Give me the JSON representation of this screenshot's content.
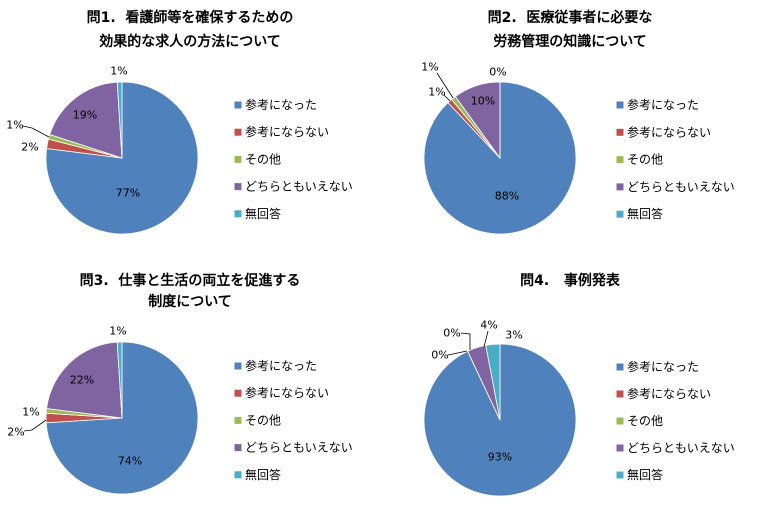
{
  "colors": [
    "#4F81BD",
    "#C0504D",
    "#9BBB59",
    "#8064A2",
    "#4BACC6"
  ],
  "chart_data": [
    {
      "type": "pie",
      "title": [
        "問1.  看護師等を確保するための",
        "効果的な求人の方法について"
      ],
      "categories": [
        "参考になった",
        "参考にならない",
        "その他",
        "どちらともいえない",
        "無回答"
      ],
      "values": [
        77,
        2,
        1,
        19,
        1
      ],
      "data_labels": [
        "77%",
        "2%",
        "1%",
        "19%",
        "1%"
      ],
      "legend": "right"
    },
    {
      "type": "pie",
      "title": [
        "問2.  医療従事者に必要な",
        "労務管理の知識について"
      ],
      "categories": [
        "参考になった",
        "参考にならない",
        "その他",
        "どちらともいえない",
        "無回答"
      ],
      "values": [
        88,
        1,
        1,
        10,
        0
      ],
      "data_labels": [
        "88%",
        "1%",
        "1%",
        "10%",
        "0%"
      ],
      "legend": "right"
    },
    {
      "type": "pie",
      "title": [
        "問3.  仕事と生活の両立を促進する",
        "制度について"
      ],
      "categories": [
        "参考になった",
        "参考にならない",
        "その他",
        "どちらともいえない",
        "無回答"
      ],
      "values": [
        74,
        2,
        1,
        22,
        1
      ],
      "data_labels": [
        "74%",
        "2%",
        "1%",
        "22%",
        "1%"
      ],
      "legend": "right"
    },
    {
      "type": "pie",
      "title": [
        "問4.   事例発表"
      ],
      "categories": [
        "参考になった",
        "参考にならない",
        "その他",
        "どちらともいえない",
        "無回答"
      ],
      "values": [
        93,
        0,
        0,
        4,
        3
      ],
      "data_labels": [
        "93%",
        "0%",
        "0%",
        "4%",
        "3%"
      ],
      "legend": "right"
    }
  ]
}
